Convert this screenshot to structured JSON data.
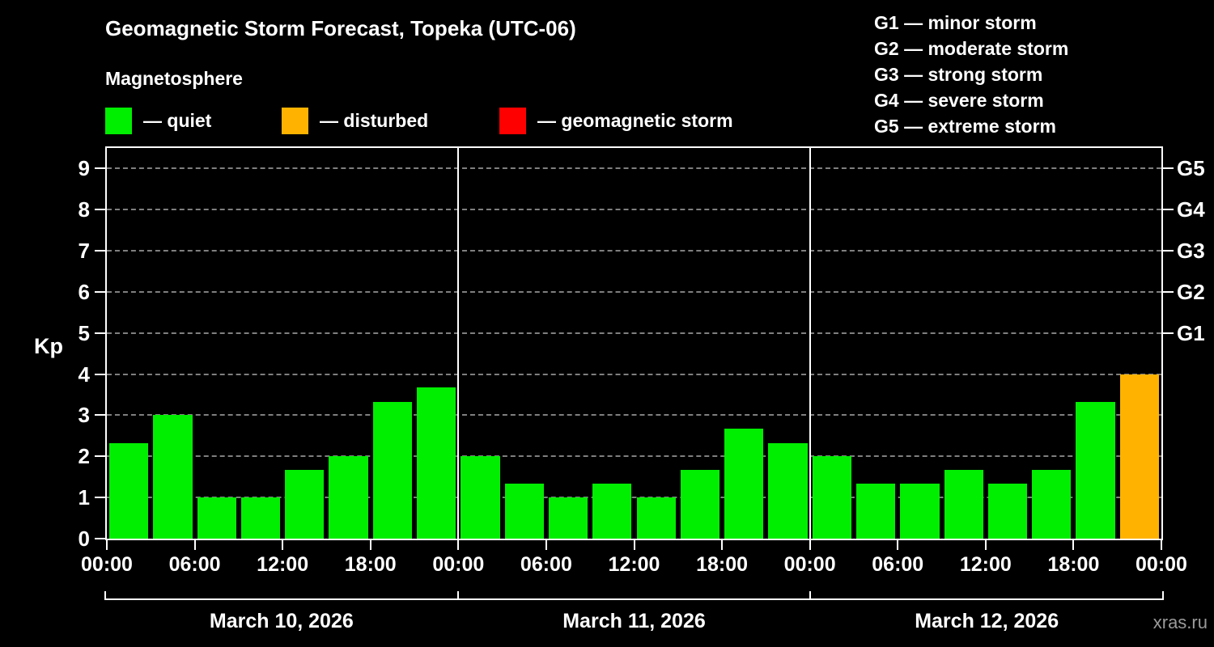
{
  "title": "Geomagnetic Storm Forecast, Topeka (UTC-06)",
  "legend": {
    "heading": "Magnetosphere",
    "separator": "—",
    "items": [
      {
        "name": "quiet",
        "label": "quiet",
        "color": "#00ee00"
      },
      {
        "name": "disturbed",
        "label": "disturbed",
        "color": "#ffb300"
      },
      {
        "name": "geomagnetic-storm",
        "label": "geomagnetic storm",
        "color": "#ff0000"
      }
    ]
  },
  "g_scale": {
    "separator": "—",
    "items": [
      {
        "code": "G1",
        "label": "minor storm"
      },
      {
        "code": "G2",
        "label": "moderate storm"
      },
      {
        "code": "G3",
        "label": "strong storm"
      },
      {
        "code": "G4",
        "label": "severe storm"
      },
      {
        "code": "G5",
        "label": "extreme storm"
      }
    ]
  },
  "watermark": "xras.ru",
  "chart_data": {
    "type": "bar",
    "title": "Geomagnetic Storm Forecast, Topeka (UTC-06)",
    "ylabel": "Kp",
    "ylim": [
      0,
      9.5
    ],
    "yticks": [
      0,
      1,
      2,
      3,
      4,
      5,
      6,
      7,
      8,
      9
    ],
    "grid": "horizontal dashed gray lines at each integer Kp",
    "bars_per_day": 8,
    "interval_hours": 3,
    "x_tick_labels_per_day": [
      "00:00",
      "06:00",
      "12:00",
      "18:00"
    ],
    "x_final_tick_label": "00:00",
    "thresholds": {
      "disturbed_min": 4,
      "storm_min": 5
    },
    "right_axis_labels": [
      {
        "kp": 5,
        "label": "G1"
      },
      {
        "kp": 6,
        "label": "G2"
      },
      {
        "kp": 7,
        "label": "G3"
      },
      {
        "kp": 8,
        "label": "G4"
      },
      {
        "kp": 9,
        "label": "G5"
      }
    ],
    "series": [
      {
        "date": "March 10, 2026",
        "values": [
          2.33,
          3,
          1,
          1,
          1.67,
          2,
          3.33,
          3.67
        ]
      },
      {
        "date": "March 11, 2026",
        "values": [
          2,
          1.33,
          1,
          1.33,
          1,
          1.67,
          2.67,
          2.33
        ]
      },
      {
        "date": "March 12, 2026",
        "values": [
          2,
          1.33,
          1.33,
          1.67,
          1.33,
          1.67,
          3.33,
          4
        ]
      }
    ]
  }
}
